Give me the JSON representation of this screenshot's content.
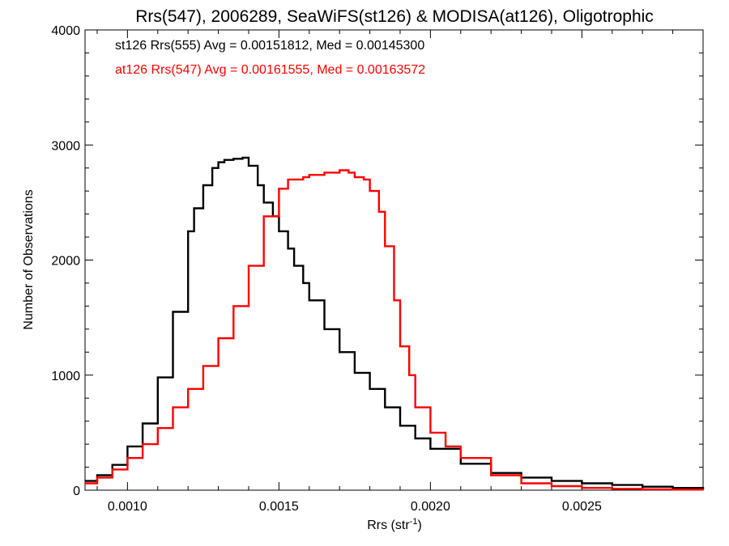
{
  "chart_data": {
    "type": "line",
    "title": "Rrs(547), 2006289, SeaWiFS(st126) & MODISA(at126), Oligotrophic",
    "xlabel": "Rrs (str",
    "xlabel_sup": "-1",
    "xlabel_close": ")",
    "ylabel": "Number of Observations",
    "xlim": [
      0.00086,
      0.0029
    ],
    "ylim": [
      0,
      4000
    ],
    "x_ticks": [
      0.001,
      0.0015,
      0.002,
      0.0025
    ],
    "x_tick_labels": [
      "0.0010",
      "0.0015",
      "0.0020",
      "0.0025"
    ],
    "y_ticks": [
      0,
      1000,
      2000,
      3000,
      4000
    ],
    "y_tick_labels": [
      "0",
      "1000",
      "2000",
      "3000",
      "4000"
    ],
    "grid": false,
    "annotations": [
      {
        "text": "st126 Rrs(555) Avg = 0.00151812, Med = 0.00145300",
        "color": "#000000"
      },
      {
        "text": "at126 Rrs(547) Avg = 0.00161555, Med = 0.00163572",
        "color": "#ff0000"
      }
    ],
    "series": [
      {
        "color": "#000000",
        "x": [
          0.00086,
          0.0009,
          0.00095,
          0.001,
          0.00105,
          0.0011,
          0.00115,
          0.0012,
          0.00122,
          0.00125,
          0.00128,
          0.0013,
          0.00132,
          0.00135,
          0.00138,
          0.0014,
          0.00143,
          0.00145,
          0.00148,
          0.0015,
          0.00153,
          0.00155,
          0.00158,
          0.0016,
          0.00165,
          0.0017,
          0.00175,
          0.0018,
          0.00185,
          0.0019,
          0.00195,
          0.002,
          0.0021,
          0.0022,
          0.0023,
          0.0024,
          0.0025,
          0.0026,
          0.0027,
          0.0028,
          0.0029
        ],
        "y": [
          80,
          130,
          220,
          380,
          580,
          980,
          1550,
          2250,
          2450,
          2650,
          2800,
          2850,
          2870,
          2880,
          2890,
          2820,
          2650,
          2500,
          2380,
          2250,
          2100,
          1950,
          1800,
          1650,
          1400,
          1200,
          1020,
          880,
          720,
          560,
          450,
          360,
          230,
          150,
          110,
          80,
          60,
          45,
          30,
          20,
          10
        ]
      },
      {
        "color": "#ff0000",
        "x": [
          0.00086,
          0.0009,
          0.00095,
          0.001,
          0.00105,
          0.0011,
          0.00115,
          0.0012,
          0.00125,
          0.0013,
          0.00135,
          0.0014,
          0.00145,
          0.0015,
          0.00153,
          0.00155,
          0.00158,
          0.0016,
          0.00165,
          0.0017,
          0.00173,
          0.00175,
          0.00178,
          0.0018,
          0.00183,
          0.00185,
          0.00188,
          0.0019,
          0.00193,
          0.00195,
          0.002,
          0.00205,
          0.0021,
          0.0022,
          0.0023,
          0.0024,
          0.0025,
          0.0026,
          0.0027,
          0.0028,
          0.0029
        ],
        "y": [
          60,
          110,
          180,
          280,
          400,
          540,
          720,
          880,
          1080,
          1320,
          1600,
          1950,
          2380,
          2620,
          2700,
          2700,
          2720,
          2740,
          2760,
          2780,
          2760,
          2720,
          2700,
          2600,
          2420,
          2120,
          1650,
          1250,
          1000,
          720,
          500,
          380,
          280,
          130,
          60,
          35,
          20,
          12,
          8,
          5,
          3
        ]
      }
    ]
  }
}
